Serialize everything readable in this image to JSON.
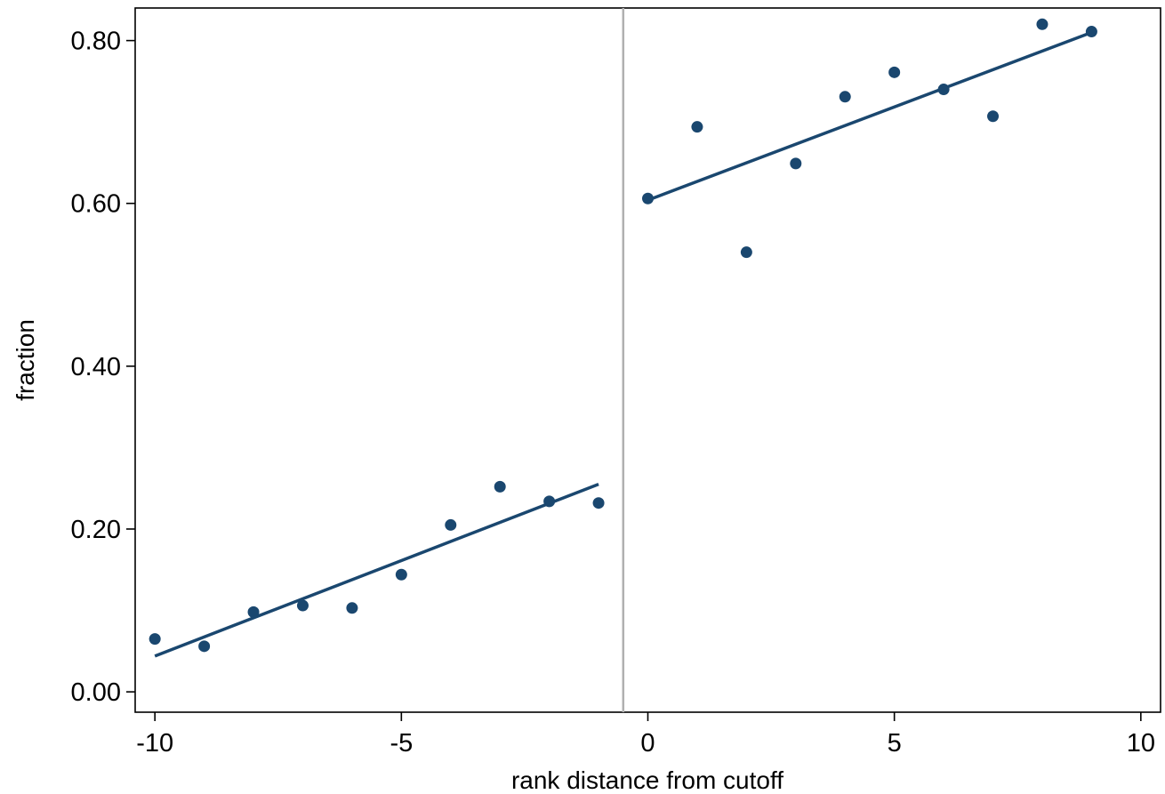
{
  "chart_data": {
    "type": "scatter",
    "xlabel": "rank distance from cutoff",
    "ylabel": "fraction",
    "xlim": [
      -10.4,
      10.4
    ],
    "ylim": [
      -0.025,
      0.84
    ],
    "xticks": [
      -10,
      -5,
      0,
      5,
      10
    ],
    "xtick_labels": [
      "-10",
      "-5",
      "0",
      "5",
      "10"
    ],
    "yticks": [
      0.0,
      0.2,
      0.4,
      0.6,
      0.8
    ],
    "ytick_labels": [
      "0.00",
      "0.20",
      "0.40",
      "0.60",
      "0.80"
    ],
    "cutoff_x": -0.5,
    "grid": false,
    "legend": "none",
    "colors": {
      "marker": "#1a476f",
      "fit_line": "#1a476f",
      "cutoff_line": "#b0b0b0",
      "frame": "#000000"
    },
    "series": [
      {
        "x": [
          -10,
          -9,
          -8,
          -7,
          -6,
          -5,
          -4,
          -3,
          -2,
          -1,
          0,
          1,
          2,
          3,
          4,
          5,
          6,
          7,
          8,
          9
        ],
        "y": [
          0.065,
          0.056,
          0.098,
          0.106,
          0.103,
          0.144,
          0.205,
          0.252,
          0.234,
          0.232,
          0.606,
          0.694,
          0.54,
          0.649,
          0.731,
          0.761,
          0.74,
          0.707,
          0.82,
          0.811
        ]
      }
    ],
    "fit_lines": [
      {
        "x": [
          -10,
          -1
        ],
        "y": [
          0.044,
          0.255
        ]
      },
      {
        "x": [
          0,
          9
        ],
        "y": [
          0.604,
          0.81
        ]
      }
    ]
  }
}
